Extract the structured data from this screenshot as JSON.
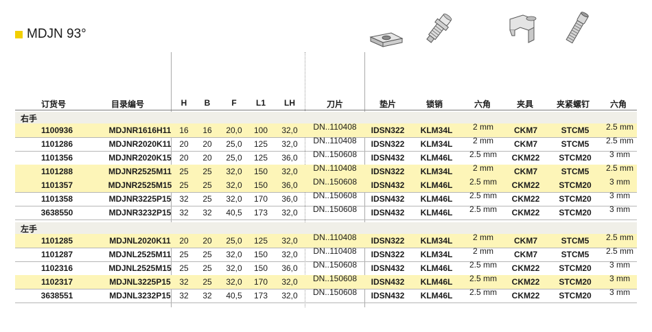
{
  "title": "MDJN 93°",
  "colors": {
    "accent": "#f2cf00",
    "highlight_row": "#fdf5b8",
    "section_bg": "#f0efe8"
  },
  "illustrations": [
    "shim-icon",
    "lock-pin-icon",
    "clamp-icon",
    "clamp-screw-icon"
  ],
  "headers": [
    "订货号",
    "目录编号",
    "H",
    "B",
    "F",
    "L1",
    "LH",
    "刀片",
    "垫片",
    "锁销",
    "六角",
    "夹具",
    "夹紧螺钉",
    "六角"
  ],
  "sections": [
    {
      "label": "右手",
      "rows": [
        {
          "order": "1100936",
          "catalog": "MDJNR1616H11",
          "H": "16",
          "B": "16",
          "F": "20,0",
          "L1": "100",
          "LH": "32,0",
          "insert": "DN..110408",
          "shim": "IDSN322",
          "lockpin": "KLM34L",
          "hex1": "2 mm",
          "clamp": "CKM7",
          "screw": "STCM5",
          "hex2": "2.5 mm"
        },
        {
          "order": "1101286",
          "catalog": "MDJNR2020K11",
          "H": "20",
          "B": "20",
          "F": "25,0",
          "L1": "125",
          "LH": "32,0",
          "insert": "DN..110408",
          "shim": "IDSN322",
          "lockpin": "KLM34L",
          "hex1": "2 mm",
          "clamp": "CKM7",
          "screw": "STCM5",
          "hex2": "2.5 mm"
        },
        {
          "order": "1101356",
          "catalog": "MDJNR2020K15",
          "H": "20",
          "B": "20",
          "F": "25,0",
          "L1": "125",
          "LH": "36,0",
          "insert": "DN..150608",
          "shim": "IDSN432",
          "lockpin": "KLM46L",
          "hex1": "2.5 mm",
          "clamp": "CKM22",
          "screw": "STCM20",
          "hex2": "3 mm"
        },
        {
          "order": "1101288",
          "catalog": "MDJNR2525M11",
          "H": "25",
          "B": "25",
          "F": "32,0",
          "L1": "150",
          "LH": "32,0",
          "insert": "DN..110408",
          "shim": "IDSN322",
          "lockpin": "KLM34L",
          "hex1": "2 mm",
          "clamp": "CKM7",
          "screw": "STCM5",
          "hex2": "2.5 mm"
        },
        {
          "order": "1101357",
          "catalog": "MDJNR2525M15",
          "H": "25",
          "B": "25",
          "F": "32,0",
          "L1": "150",
          "LH": "36,0",
          "insert": "DN..150608",
          "shim": "IDSN432",
          "lockpin": "KLM46L",
          "hex1": "2.5 mm",
          "clamp": "CKM22",
          "screw": "STCM20",
          "hex2": "3 mm"
        },
        {
          "order": "1101358",
          "catalog": "MDJNR3225P15",
          "H": "32",
          "B": "25",
          "F": "32,0",
          "L1": "170",
          "LH": "36,0",
          "insert": "DN..150608",
          "shim": "IDSN432",
          "lockpin": "KLM46L",
          "hex1": "2.5 mm",
          "clamp": "CKM22",
          "screw": "STCM20",
          "hex2": "3 mm"
        },
        {
          "order": "3638550",
          "catalog": "MDJNR3232P15",
          "H": "32",
          "B": "32",
          "F": "40,5",
          "L1": "173",
          "LH": "32,0",
          "insert": "DN..150608",
          "shim": "IDSN432",
          "lockpin": "KLM46L",
          "hex1": "2.5 mm",
          "clamp": "CKM22",
          "screw": "STCM20",
          "hex2": "3 mm"
        }
      ]
    },
    {
      "label": "左手",
      "rows": [
        {
          "order": "1101285",
          "catalog": "MDJNL2020K11",
          "H": "20",
          "B": "20",
          "F": "25,0",
          "L1": "125",
          "LH": "32,0",
          "insert": "DN..110408",
          "shim": "IDSN322",
          "lockpin": "KLM34L",
          "hex1": "2 mm",
          "clamp": "CKM7",
          "screw": "STCM5",
          "hex2": "2.5 mm"
        },
        {
          "order": "1101287",
          "catalog": "MDJNL2525M11",
          "H": "25",
          "B": "25",
          "F": "32,0",
          "L1": "150",
          "LH": "32,0",
          "insert": "DN..110408",
          "shim": "IDSN322",
          "lockpin": "KLM34L",
          "hex1": "2 mm",
          "clamp": "CKM7",
          "screw": "STCM5",
          "hex2": "2.5 mm"
        },
        {
          "order": "1102316",
          "catalog": "MDJNL2525M15",
          "H": "25",
          "B": "25",
          "F": "32,0",
          "L1": "150",
          "LH": "36,0",
          "insert": "DN..150608",
          "shim": "IDSN432",
          "lockpin": "KLM46L",
          "hex1": "2.5 mm",
          "clamp": "CKM22",
          "screw": "STCM20",
          "hex2": "3 mm"
        },
        {
          "order": "1102317",
          "catalog": "MDJNL3225P15",
          "H": "32",
          "B": "25",
          "F": "32,0",
          "L1": "170",
          "LH": "32,0",
          "insert": "DN..150608",
          "shim": "IDSN432",
          "lockpin": "KLM46L",
          "hex1": "2.5 mm",
          "clamp": "CKM22",
          "screw": "STCM20",
          "hex2": "3 mm"
        },
        {
          "order": "3638551",
          "catalog": "MDJNL3232P15",
          "H": "32",
          "B": "32",
          "F": "40,5",
          "L1": "173",
          "LH": "32,0",
          "insert": "DN..150608",
          "shim": "IDSN432",
          "lockpin": "KLM46L",
          "hex1": "2.5 mm",
          "clamp": "CKM22",
          "screw": "STCM20",
          "hex2": "3 mm"
        }
      ]
    }
  ]
}
